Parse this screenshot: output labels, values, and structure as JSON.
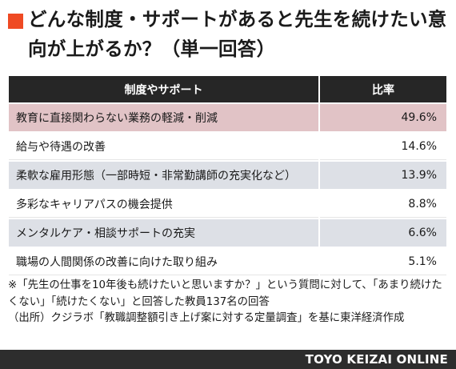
{
  "title": "どんな制度・サポートがあると先生を続けたい意向が上がるか？（単一回答）",
  "colors": {
    "accent": "#ef4a23",
    "header_bg": "#262626",
    "highlight_row": "#e1c3c6",
    "stripe_row": "#dde0e6",
    "footer_bg": "#2d2d2d"
  },
  "chart_data": {
    "type": "table",
    "title": "どんな制度・サポートがあると先生を続けたい意向が上がるか？（単一回答）",
    "columns": [
      "制度やサポート",
      "比率"
    ],
    "rows": [
      {
        "label": "教育に直接関わらない業務の軽減・削減",
        "value": "49.6%",
        "highlight": true
      },
      {
        "label": "給与や待遇の改善",
        "value": "14.6%",
        "highlight": false
      },
      {
        "label": "柔軟な雇用形態（一部時短・非常勤講師の充実化など）",
        "value": "13.9%",
        "highlight": false
      },
      {
        "label": "多彩なキャリアパスの機会提供",
        "value": "8.8%",
        "highlight": false
      },
      {
        "label": "メンタルケア・相談サポートの充実",
        "value": "6.6%",
        "highlight": false
      },
      {
        "label": "職場の人間関係の改善に向けた取り組み",
        "value": "5.1%",
        "highlight": false
      }
    ]
  },
  "note": "※「先生の仕事を10年後も続けたいと思いますか？」という質問に対して、「あまり続けたくない」「続けたくない」と回答した教員137名の回答\n（出所）クジラボ「教職調整額引き上げ案に対する定量調査」を基に東洋経済作成",
  "footer": {
    "brand": "TOYO KEIZAI ONLINE"
  }
}
